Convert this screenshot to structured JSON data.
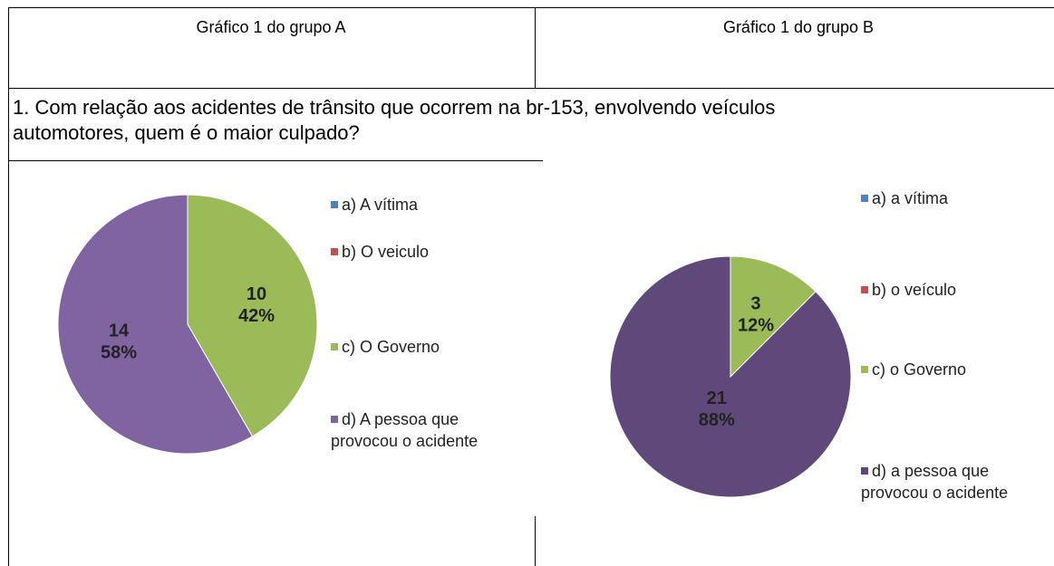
{
  "table": {
    "headers": [
      "Gráfico 1 do grupo A",
      "Gráfico 1 do grupo B"
    ],
    "question": [
      "1. Com relação aos acidentes de trânsito que ocorrem na br-153, envolvendo veículos",
      "automotores, quem é o maior culpado?"
    ],
    "charts": [
      {
        "type": "pie",
        "categories": [
          "a) A vítima",
          "b) O veiculo",
          "c) O Governo",
          "d) A pessoa que provocou o acidente"
        ],
        "values": [
          0,
          0,
          10,
          14
        ],
        "percent_labels": [
          null,
          null,
          "42%",
          "58%"
        ],
        "colors": [
          "#4f81bd",
          "#c0504d",
          "#9bbb59",
          "#8064a2"
        ]
      },
      {
        "type": "pie",
        "categories": [
          "a) a vítima",
          "b) o veículo",
          "c) o Governo",
          "d) a pessoa que provocou o acidente"
        ],
        "values": [
          0,
          0,
          3,
          21
        ],
        "percent_labels": [
          null,
          null,
          "12%",
          "88%"
        ],
        "colors": [
          "#4f81bd",
          "#c0504d",
          "#9bbb59",
          "#5f497a"
        ]
      }
    ]
  }
}
